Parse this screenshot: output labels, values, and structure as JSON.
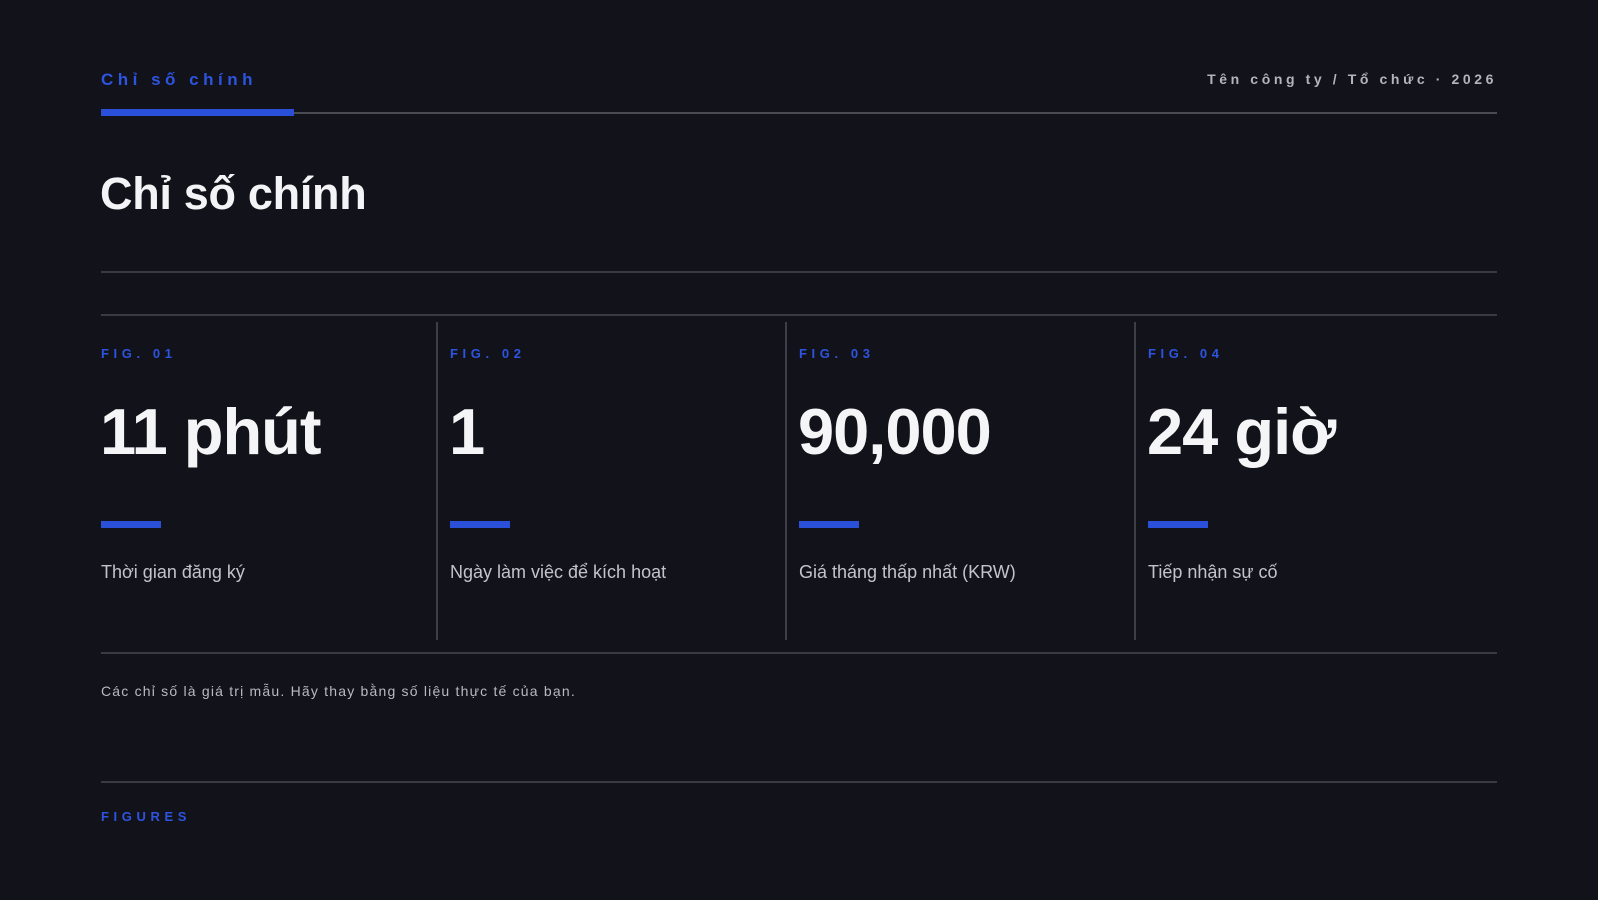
{
  "header": {
    "section_label": "Chỉ số chính",
    "org_label": "Tên công ty / Tổ chức · 2026"
  },
  "page": {
    "title": "Chỉ số chính"
  },
  "metrics": [
    {
      "fig": "FIG. 01",
      "value": "11 phút",
      "caption": "Thời gian đăng ký"
    },
    {
      "fig": "FIG. 02",
      "value": "1",
      "caption": "Ngày làm việc để kích hoạt"
    },
    {
      "fig": "FIG. 03",
      "value": "90,000",
      "caption": "Giá tháng thấp nhất (KRW)"
    },
    {
      "fig": "FIG. 04",
      "value": "24 giờ",
      "caption": "Tiếp nhận sự cố"
    }
  ],
  "footnote": "Các chỉ số là giá trị mẫu. Hãy thay bằng số liệu thực tế của bạn.",
  "footer": {
    "label": "FIGURES"
  },
  "colors": {
    "background": "#12131a",
    "accent": "#2a4fd8",
    "text": "#f4f4f6",
    "muted": "#b9bac1",
    "rule": "#3a3b42"
  }
}
